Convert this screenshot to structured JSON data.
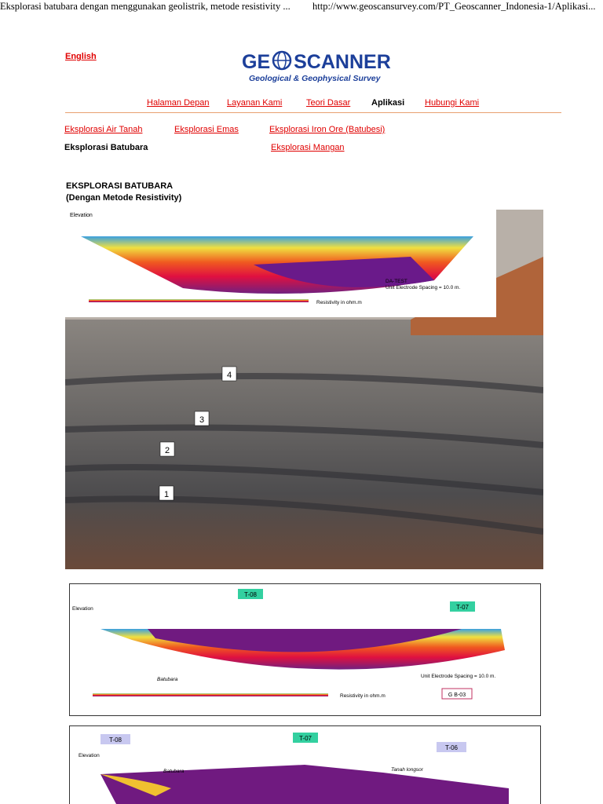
{
  "print_header": {
    "title": "Eksplorasi batubara dengan menggunakan geolistrik, metode resistivity ...",
    "url": "http://www.geoscansurvey.com/PT_Geoscanner_Indonesia-1/Aplikasi..."
  },
  "language_link": "English",
  "logo": {
    "left": "GE",
    "right": "SCANNER",
    "tagline": "Geological & Geophysical Survey"
  },
  "nav": [
    "Halaman Depan",
    "Layanan Kami",
    "Teori Dasar",
    "Aplikasi",
    "Hubungi Kami"
  ],
  "subnav": [
    "Eksplorasi Air Tanah",
    "Eksplorasi Emas",
    "Eksplorasi Iron Ore (Batubesi)",
    "Eksplorasi Batubara",
    "Eksplorasi Mangan"
  ],
  "article": {
    "title": "EKSPLORASI BATUBARA",
    "subtitle": "(Dengan Metode Resistivity)"
  },
  "figure1": {
    "axis_title": "Elevation",
    "test_name": "DA-TEST",
    "spacing": "Unit Electrode Spacing = 10.0 m.",
    "legend": "Resistivity in ohm.m",
    "layers": [
      "4",
      "3",
      "2",
      "1"
    ]
  },
  "figure2": {
    "axis_title": "Elevation",
    "station": "T-08",
    "station2": "T-07",
    "coal": "Batubara",
    "spacing": "Unit Electrode Spacing = 10.0 m.",
    "legend": "Resistivity in ohm.m",
    "code": "G B-03"
  },
  "figure3": {
    "axis_title": "Elevation",
    "station": "T-08",
    "station2": "T-07",
    "station3": "T-06",
    "coal": "Batubara",
    "soil": "Tanah longsor"
  }
}
